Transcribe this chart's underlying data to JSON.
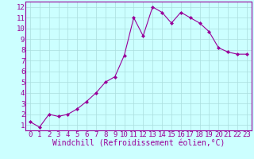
{
  "x": [
    0,
    1,
    2,
    3,
    4,
    5,
    6,
    7,
    8,
    9,
    10,
    11,
    12,
    13,
    14,
    15,
    16,
    17,
    18,
    19,
    20,
    21,
    22,
    23
  ],
  "y": [
    1.3,
    0.8,
    2.0,
    1.8,
    2.0,
    2.5,
    3.2,
    4.0,
    5.0,
    5.5,
    7.5,
    11.0,
    9.3,
    12.0,
    11.5,
    10.5,
    11.5,
    11.0,
    10.5,
    9.7,
    8.2,
    7.8,
    7.6,
    7.6
  ],
  "line_color": "#990099",
  "marker": "D",
  "marker_size": 2.0,
  "bg_color": "#ccffff",
  "grid_color": "#aadddd",
  "xlabel": "Windchill (Refroidissement éolien,°C)",
  "xlabel_color": "#990099",
  "xlabel_fontsize": 7,
  "tick_color": "#990099",
  "tick_fontsize": 6.5,
  "xlim": [
    -0.5,
    23.5
  ],
  "ylim": [
    0.5,
    12.5
  ],
  "yticks": [
    1,
    2,
    3,
    4,
    5,
    6,
    7,
    8,
    9,
    10,
    11,
    12
  ],
  "xticks": [
    0,
    1,
    2,
    3,
    4,
    5,
    6,
    7,
    8,
    9,
    10,
    11,
    12,
    13,
    14,
    15,
    16,
    17,
    18,
    19,
    20,
    21,
    22,
    23
  ],
  "spine_color": "#990099",
  "linewidth": 0.8
}
